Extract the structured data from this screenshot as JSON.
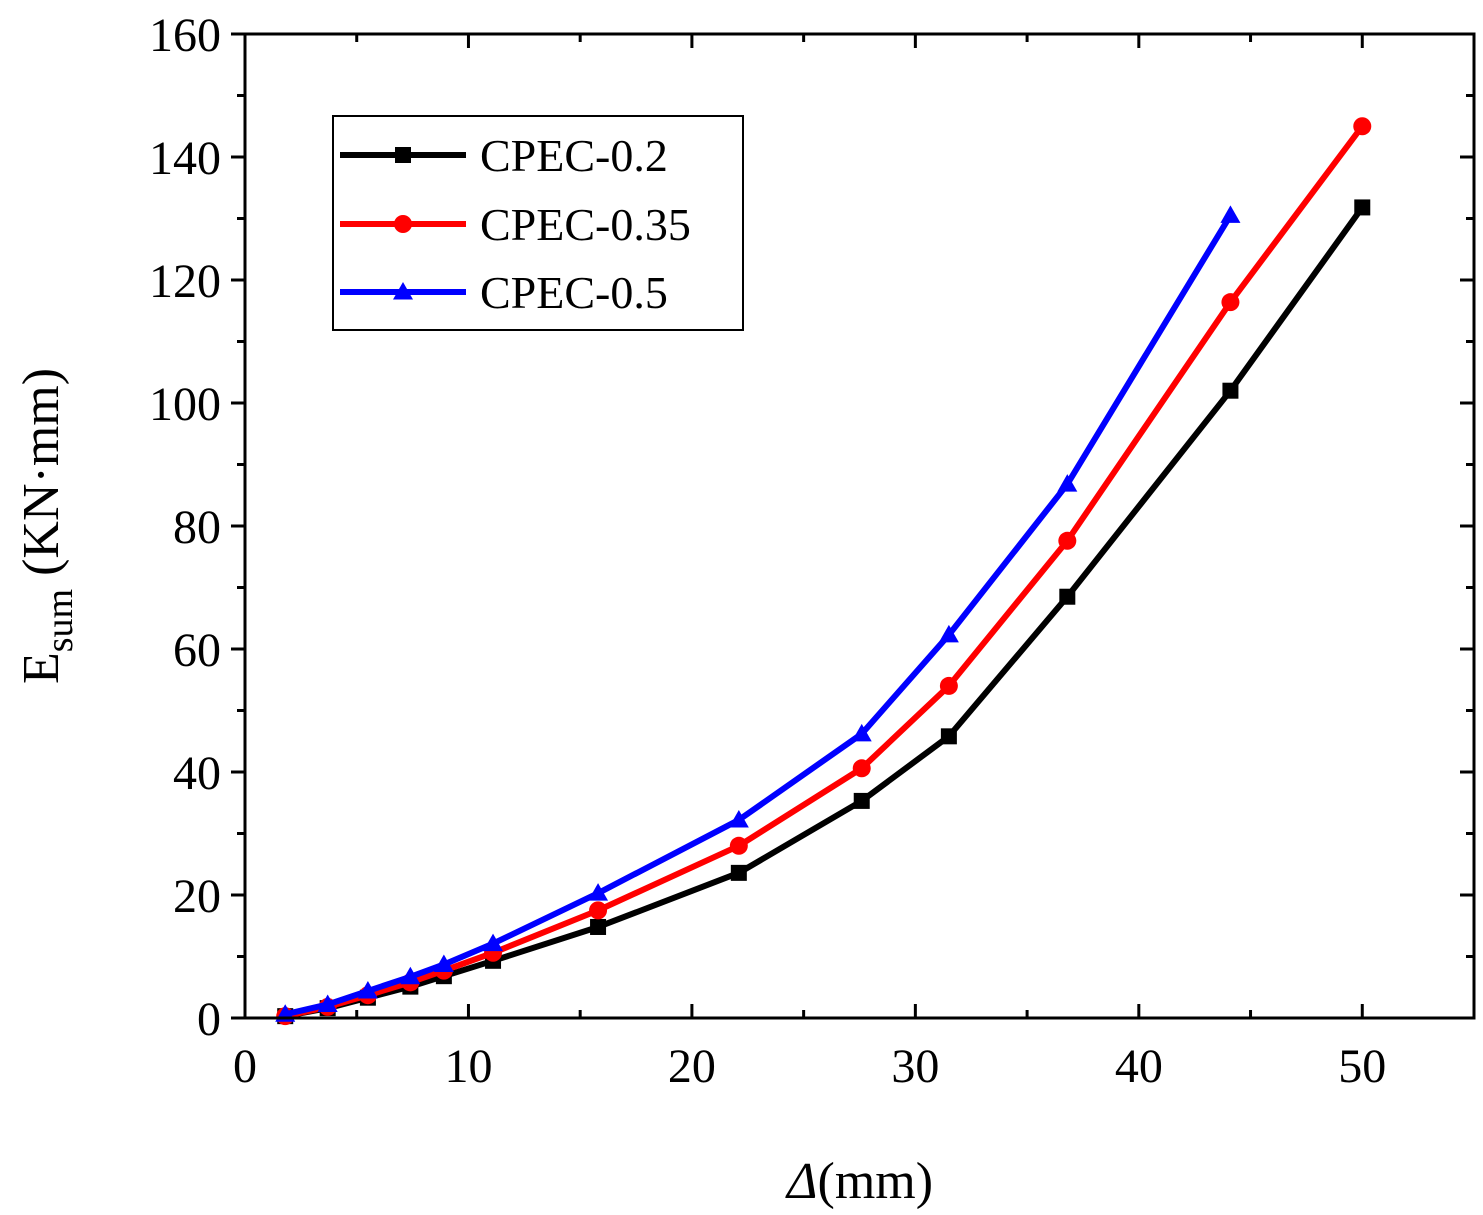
{
  "chart_data": {
    "type": "line",
    "title": "",
    "xlabel": "Δ(mm)",
    "ylabel": "E",
    "ylabel_sub": "sum",
    "ylabel_unit": " (KN·mm)",
    "xlim": [
      0,
      55
    ],
    "ylim": [
      0,
      160
    ],
    "xticks": [
      0,
      10,
      20,
      30,
      40,
      50
    ],
    "yticks": [
      0,
      20,
      40,
      60,
      80,
      100,
      120,
      140,
      160
    ],
    "grid": false,
    "legend_position": "top-left",
    "series": [
      {
        "name": "CPEC-0.2",
        "color": "#000000",
        "marker": "square",
        "x": [
          1.8,
          3.7,
          5.5,
          7.4,
          8.9,
          11.1,
          15.8,
          22.1,
          27.6,
          31.5,
          36.8,
          44.1,
          50.0
        ],
        "y": [
          0.3,
          1.6,
          3.3,
          5.1,
          6.8,
          9.3,
          14.8,
          23.6,
          35.3,
          45.8,
          68.5,
          102.0,
          131.8
        ]
      },
      {
        "name": "CPEC-0.35",
        "color": "#ff0000",
        "marker": "circle",
        "x": [
          1.8,
          3.7,
          5.5,
          7.4,
          8.9,
          11.1,
          15.8,
          22.1,
          27.6,
          31.5,
          36.8,
          44.1,
          50.0
        ],
        "y": [
          0.3,
          1.8,
          3.7,
          5.8,
          7.7,
          10.6,
          17.5,
          28.0,
          40.6,
          54.0,
          77.6,
          116.4,
          145.0
        ]
      },
      {
        "name": "CPEC-0.5",
        "color": "#0000ff",
        "marker": "triangle",
        "x": [
          1.8,
          3.7,
          5.5,
          7.4,
          8.9,
          11.1,
          15.8,
          22.1,
          27.6,
          31.5,
          36.8,
          44.1
        ],
        "y": [
          0.6,
          2.2,
          4.4,
          6.7,
          8.7,
          12.1,
          20.3,
          32.2,
          46.2,
          62.3,
          86.8,
          130.5
        ]
      }
    ]
  }
}
